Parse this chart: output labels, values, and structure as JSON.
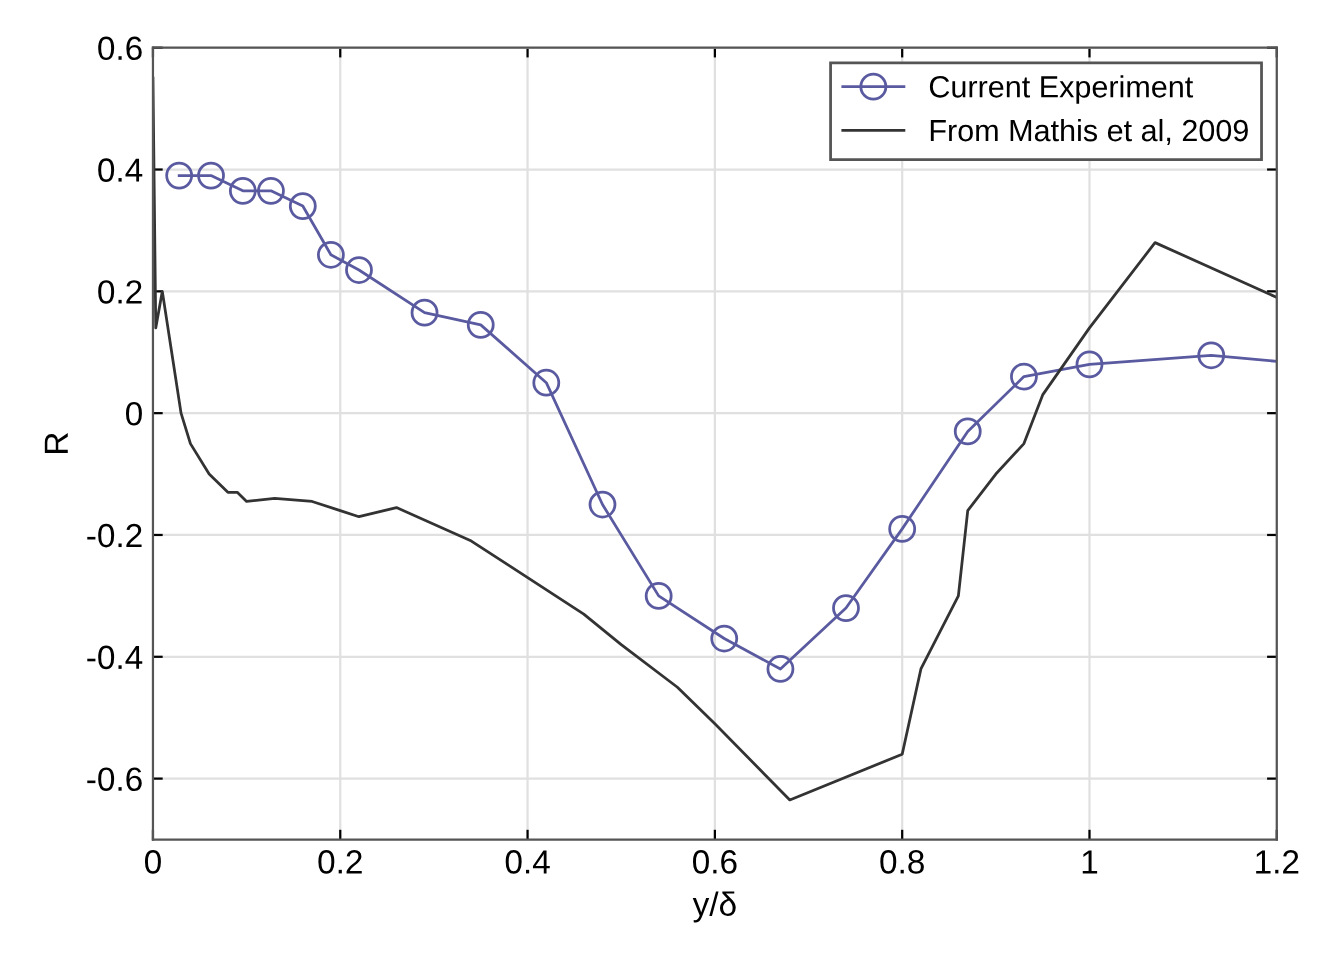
{
  "chart_data": {
    "type": "line",
    "xlabel": "y/δ",
    "ylabel": "R",
    "xlim": [
      0,
      1.2
    ],
    "xticks": [
      0,
      0.2,
      0.4,
      0.6,
      0.8,
      1,
      1.2
    ],
    "ylim": [
      -0.7,
      0.6
    ],
    "yticks": [
      -0.6,
      -0.4,
      -0.2,
      0,
      0.2,
      0.4,
      0.6
    ],
    "grid": true,
    "legend": "top right",
    "series": [
      {
        "name": "Current Experiment",
        "color": "#5a5aa0",
        "marker": "circle",
        "x": [
          0.028,
          0.062,
          0.096,
          0.126,
          0.16,
          0.19,
          0.22,
          0.29,
          0.35,
          0.42,
          0.48,
          0.54,
          0.61,
          0.67,
          0.74,
          0.8,
          0.87,
          0.93,
          1.0,
          1.13,
          1.2
        ],
        "values": [
          0.39,
          0.39,
          0.365,
          0.365,
          0.34,
          0.26,
          0.235,
          0.165,
          0.145,
          0.05,
          -0.15,
          -0.3,
          -0.37,
          -0.42,
          -0.32,
          -0.19,
          -0.03,
          0.06,
          0.08,
          0.095,
          0.085
        ]
      },
      {
        "name": "From Mathis et al, 2009",
        "color": "#333333",
        "marker": "none",
        "x": [
          0,
          0.003,
          0.01,
          0.02,
          0.03,
          0.04,
          0.06,
          0.08,
          0.09,
          0.1,
          0.13,
          0.17,
          0.2,
          0.22,
          0.26,
          0.34,
          0.38,
          0.46,
          0.5,
          0.56,
          0.6,
          0.68,
          0.8,
          0.82,
          0.84,
          0.86,
          0.87,
          0.9,
          0.93,
          0.95,
          1.0,
          1.07,
          1.2
        ],
        "values": [
          0.55,
          0.14,
          0.2,
          0.1,
          0.0,
          -0.05,
          -0.1,
          -0.13,
          -0.13,
          -0.145,
          -0.14,
          -0.145,
          -0.16,
          -0.17,
          -0.155,
          -0.21,
          -0.25,
          -0.33,
          -0.38,
          -0.45,
          -0.51,
          -0.635,
          -0.56,
          -0.42,
          -0.36,
          -0.3,
          -0.16,
          -0.1,
          -0.05,
          0.03,
          0.14,
          0.28,
          0.19
        ]
      }
    ]
  }
}
